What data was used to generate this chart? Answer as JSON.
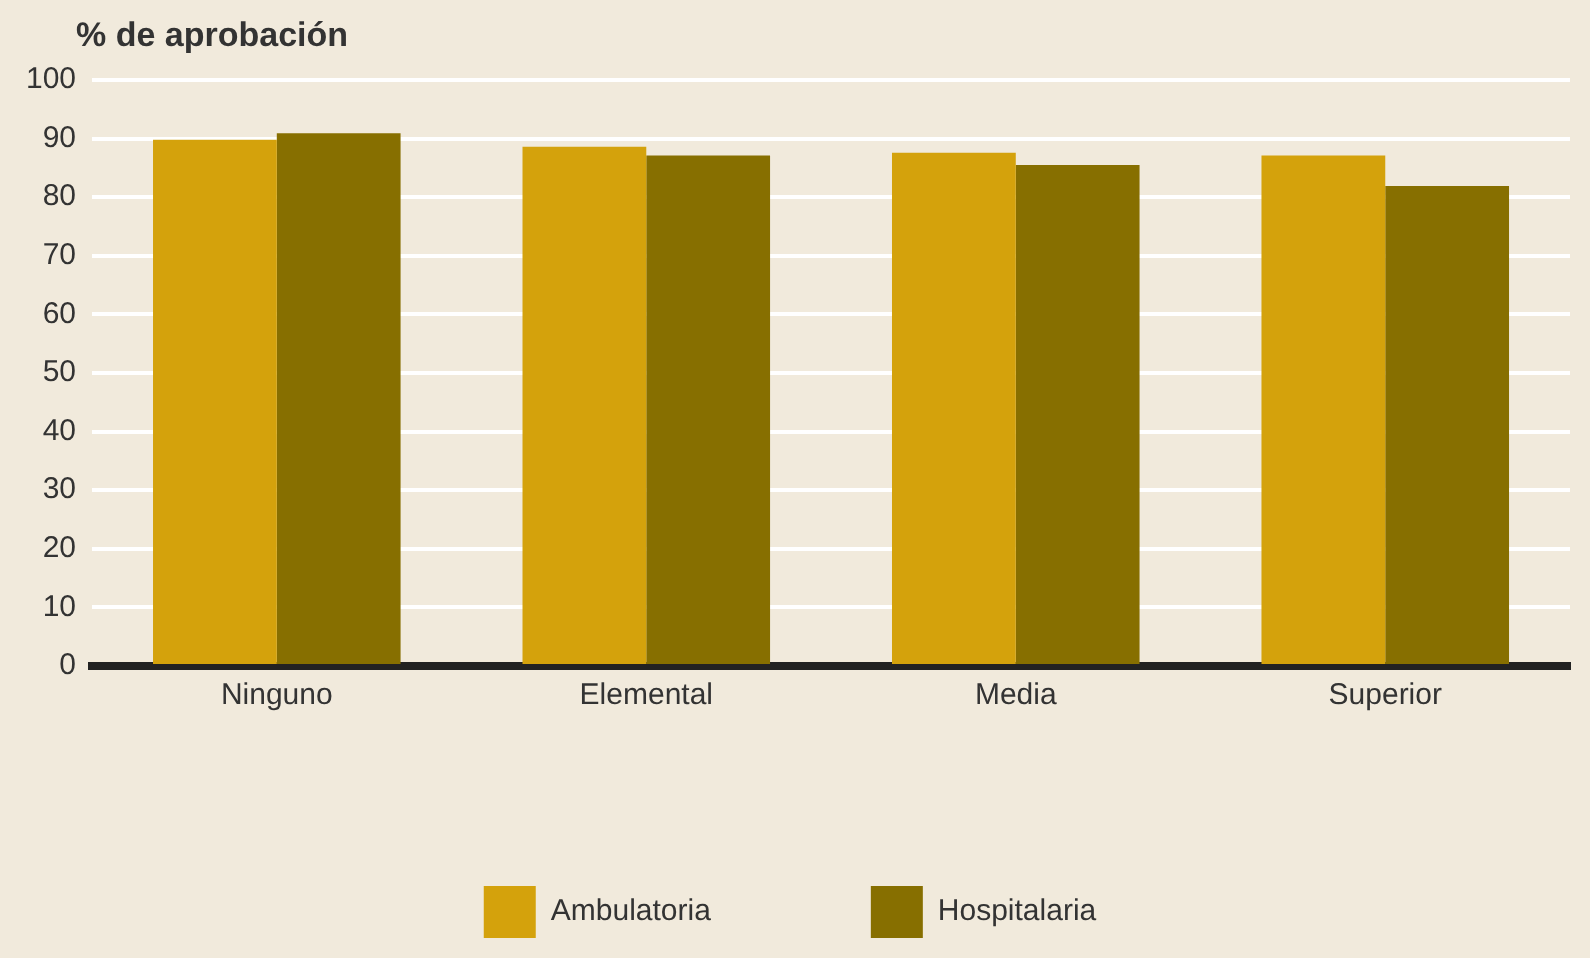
{
  "chart_data": {
    "type": "bar",
    "ylabel": "% de aprobación",
    "categories": [
      "Ninguno",
      "Elemental",
      "Media",
      "Superior"
    ],
    "series": [
      {
        "name": "Ambulatoria",
        "color": "#d4a20c",
        "values": [
          89.8,
          88.6,
          87.6,
          87.1
        ]
      },
      {
        "name": "Hospitalaria",
        "color": "#876f00",
        "values": [
          90.9,
          87.1,
          85.5,
          81.9
        ]
      }
    ],
    "ylim": [
      0,
      100
    ],
    "yticks": [
      0,
      10,
      20,
      30,
      40,
      50,
      60,
      70,
      80,
      90,
      100
    ],
    "grid": "y",
    "legend": "bottom"
  }
}
